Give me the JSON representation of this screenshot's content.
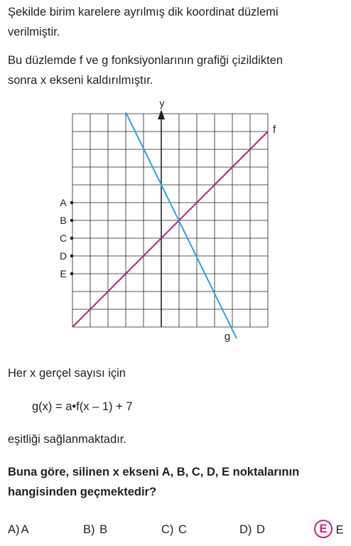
{
  "intro": {
    "line1": "Şekilde birim karelere ayrılmış dik koordinat düzlemi",
    "line2": "verilmiştir.",
    "line3": "Bu düzlemde  f  ve  g  fonksiyonlarının grafiği çizildikten",
    "line4": "sonra  x  ekseni kaldırılmıştır."
  },
  "graph": {
    "y_axis_label": "y",
    "f_label": "f",
    "g_label": "g",
    "point_labels": [
      "A",
      "B",
      "C",
      "D",
      "E"
    ],
    "colors": {
      "f": "#b3206e",
      "g": "#2aa7dc",
      "grid": "#231f20"
    }
  },
  "statement": {
    "line1": "Her  x  gerçel sayısı için",
    "formula": "g(x) = a•f(x – 1) + 7",
    "line2": "eşitliği sağlanmaktadır."
  },
  "question": {
    "line1": "Buna göre, silinen  x  ekseni  A, B, C, D, E  noktalarının",
    "line2": "hangisinden geçmektedir?"
  },
  "options": [
    {
      "letter": "A)",
      "text": "A"
    },
    {
      "letter": "B)",
      "text": "B"
    },
    {
      "letter": "C)",
      "text": "C"
    },
    {
      "letter": "D)",
      "text": "D"
    },
    {
      "letter": "E",
      "text": "E",
      "selected": true
    }
  ]
}
